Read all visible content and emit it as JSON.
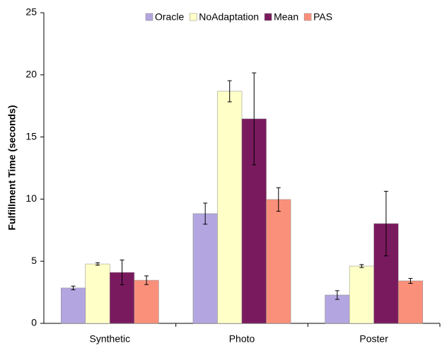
{
  "chart_data": {
    "type": "bar",
    "y_label": "Fulfillment Time (seconds)",
    "categories": [
      "Synthetic",
      "Photo",
      "Poster"
    ],
    "series": [
      {
        "name": "Oracle",
        "color": "#b3a6e0",
        "values": [
          2.85,
          8.83,
          2.28
        ],
        "errors": [
          0.15,
          0.85,
          0.35
        ]
      },
      {
        "name": "NoAdaptation",
        "color": "#ffffc8",
        "values": [
          4.78,
          18.68,
          4.61
        ],
        "errors": [
          0.1,
          0.85,
          0.12
        ]
      },
      {
        "name": "Mean",
        "color": "#7a1a5e",
        "values": [
          4.1,
          16.46,
          8.03
        ],
        "errors": [
          1.0,
          3.7,
          2.6
        ]
      },
      {
        "name": "PAS",
        "color": "#fa907a",
        "values": [
          3.47,
          9.97,
          3.42
        ],
        "errors": [
          0.35,
          0.95,
          0.2
        ]
      }
    ],
    "ylim": [
      0,
      25
    ],
    "yticks": [
      0,
      5,
      10,
      15,
      20,
      25
    ],
    "grid": false,
    "legend": "top"
  }
}
